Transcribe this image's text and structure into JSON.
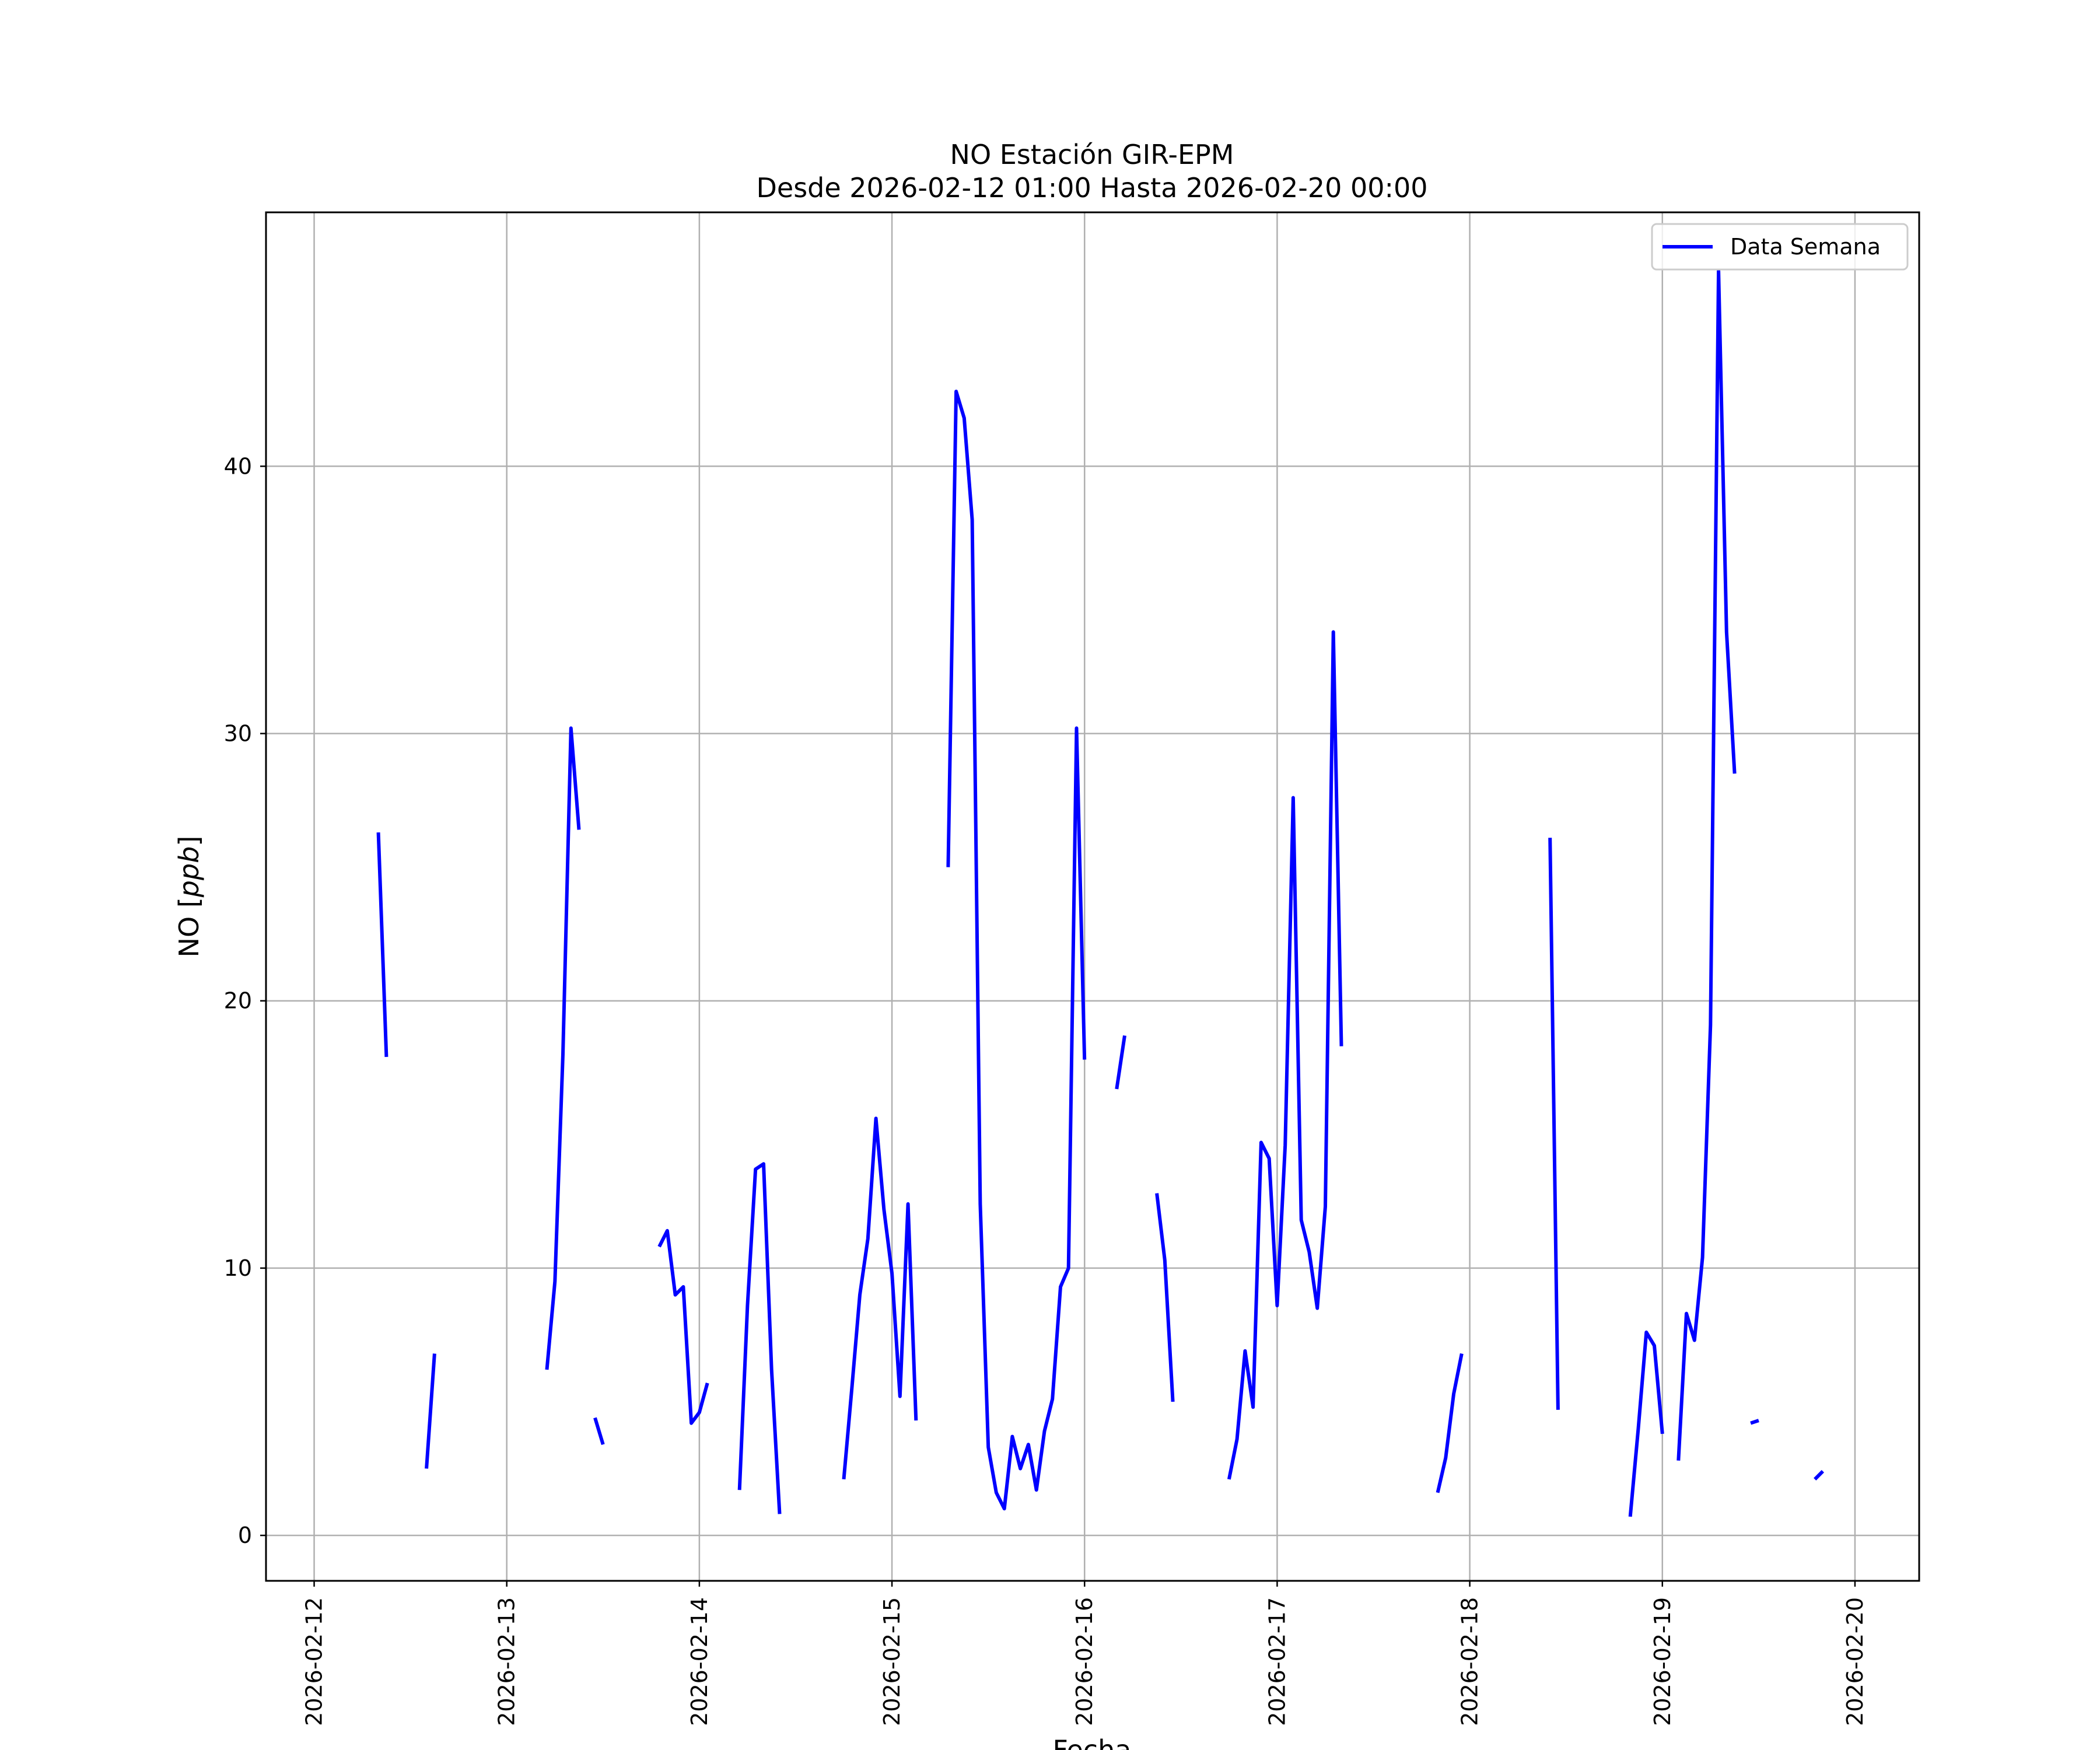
{
  "chart_data": {
    "type": "line",
    "title": "NO Estación GIR-EPM",
    "subtitle": "Desde 2026-02-12 01:00 Hasta 2026-02-20 00:00",
    "xlabel": "Fecha",
    "ylabel": "NO [ppb]",
    "ylim": [
      -1.7,
      49.5
    ],
    "xlim": [
      "2026-02-11 18:00",
      "2026-02-20 08:00"
    ],
    "yticks": [
      0,
      10,
      20,
      30,
      40
    ],
    "xticks": [
      "2026-02-12",
      "2026-02-13",
      "2026-02-14",
      "2026-02-15",
      "2026-02-16",
      "2026-02-17",
      "2026-02-18",
      "2026-02-19",
      "2026-02-20"
    ],
    "grid": true,
    "legend_position": "top-right",
    "series": [
      {
        "name": "Data Semana",
        "color": "#0000ff",
        "segments": [
          [
            [
              "2026-02-12 08:00",
              26.3
            ],
            [
              "2026-02-12 09:00",
              17.9
            ]
          ],
          [
            [
              "2026-02-12 14:00",
              2.5
            ],
            [
              "2026-02-12 15:00",
              6.8
            ]
          ],
          [
            [
              "2026-02-13 05:00",
              6.2
            ],
            [
              "2026-02-13 06:00",
              9.5
            ],
            [
              "2026-02-13 07:00",
              18.0
            ],
            [
              "2026-02-13 08:00",
              30.2
            ],
            [
              "2026-02-13 09:00",
              26.4
            ]
          ],
          [
            [
              "2026-02-13 11:00",
              4.4
            ],
            [
              "2026-02-13 12:00",
              3.4
            ]
          ],
          [
            [
              "2026-02-13 19:00",
              10.8
            ],
            [
              "2026-02-13 20:00",
              11.4
            ],
            [
              "2026-02-13 21:00",
              9.0
            ],
            [
              "2026-02-13 22:00",
              9.3
            ],
            [
              "2026-02-13 23:00",
              4.2
            ],
            [
              "2026-02-14 00:00",
              4.6
            ],
            [
              "2026-02-14 01:00",
              5.7
            ]
          ],
          [
            [
              "2026-02-14 05:00",
              1.7
            ],
            [
              "2026-02-14 06:00",
              8.6
            ],
            [
              "2026-02-14 07:00",
              13.7
            ],
            [
              "2026-02-14 08:00",
              13.9
            ],
            [
              "2026-02-14 09:00",
              6.2
            ],
            [
              "2026-02-14 10:00",
              0.8
            ]
          ],
          [
            [
              "2026-02-14 18:00",
              2.1
            ],
            [
              "2026-02-14 19:00",
              5.5
            ],
            [
              "2026-02-14 20:00",
              9.0
            ],
            [
              "2026-02-14 21:00",
              11.1
            ],
            [
              "2026-02-14 22:00",
              15.6
            ],
            [
              "2026-02-14 23:00",
              12.2
            ],
            [
              "2026-02-15 00:00",
              9.8
            ],
            [
              "2026-02-15 01:00",
              5.2
            ],
            [
              "2026-02-15 02:00",
              12.4
            ],
            [
              "2026-02-15 03:00",
              4.3
            ]
          ],
          [
            [
              "2026-02-15 07:00",
              25.0
            ],
            [
              "2026-02-15 08:00",
              42.8
            ],
            [
              "2026-02-15 09:00",
              41.8
            ],
            [
              "2026-02-15 10:00",
              38.0
            ],
            [
              "2026-02-15 11:00",
              12.4
            ],
            [
              "2026-02-15 12:00",
              3.3
            ],
            [
              "2026-02-15 13:00",
              1.6
            ],
            [
              "2026-02-15 14:00",
              1.0
            ],
            [
              "2026-02-15 15:00",
              3.7
            ],
            [
              "2026-02-15 16:00",
              2.5
            ],
            [
              "2026-02-15 17:00",
              3.4
            ],
            [
              "2026-02-15 18:00",
              1.7
            ],
            [
              "2026-02-15 19:00",
              3.9
            ],
            [
              "2026-02-15 20:00",
              5.1
            ],
            [
              "2026-02-15 21:00",
              9.3
            ],
            [
              "2026-02-15 22:00",
              10.0
            ],
            [
              "2026-02-15 23:00",
              30.2
            ],
            [
              "2026-02-16 00:00",
              17.8
            ]
          ],
          [
            [
              "2026-02-16 04:00",
              16.7
            ],
            [
              "2026-02-16 05:00",
              18.7
            ]
          ],
          [
            [
              "2026-02-16 09:00",
              12.8
            ],
            [
              "2026-02-16 10:00",
              10.3
            ],
            [
              "2026-02-16 11:00",
              5.0
            ]
          ],
          [
            [
              "2026-02-16 18:00",
              2.1
            ],
            [
              "2026-02-16 19:00",
              3.6
            ],
            [
              "2026-02-16 20:00",
              6.9
            ],
            [
              "2026-02-16 21:00",
              4.8
            ],
            [
              "2026-02-16 22:00",
              14.7
            ],
            [
              "2026-02-16 23:00",
              14.1
            ],
            [
              "2026-02-17 00:00",
              8.6
            ],
            [
              "2026-02-17 01:00",
              14.6
            ],
            [
              "2026-02-17 02:00",
              27.6
            ],
            [
              "2026-02-17 03:00",
              11.8
            ],
            [
              "2026-02-17 04:00",
              10.6
            ],
            [
              "2026-02-17 05:00",
              8.5
            ],
            [
              "2026-02-17 06:00",
              12.3
            ],
            [
              "2026-02-17 07:00",
              33.8
            ],
            [
              "2026-02-17 08:00",
              18.3
            ]
          ],
          [
            [
              "2026-02-17 20:00",
              1.6
            ],
            [
              "2026-02-17 21:00",
              2.9
            ],
            [
              "2026-02-17 22:00",
              5.3
            ],
            [
              "2026-02-17 23:00",
              6.8
            ]
          ],
          [
            [
              "2026-02-18 10:00",
              26.1
            ],
            [
              "2026-02-18 11:00",
              4.7
            ]
          ],
          [
            [
              "2026-02-18 20:00",
              0.7
            ],
            [
              "2026-02-18 21:00",
              4.0
            ],
            [
              "2026-02-18 22:00",
              7.6
            ],
            [
              "2026-02-18 23:00",
              7.1
            ],
            [
              "2026-02-19 00:00",
              3.8
            ]
          ],
          [
            [
              "2026-02-19 02:00",
              2.8
            ],
            [
              "2026-02-19 03:00",
              8.3
            ],
            [
              "2026-02-19 04:00",
              7.3
            ],
            [
              "2026-02-19 05:00",
              10.4
            ],
            [
              "2026-02-19 06:00",
              19.1
            ],
            [
              "2026-02-19 07:00",
              47.3
            ],
            [
              "2026-02-19 08:00",
              33.8
            ],
            [
              "2026-02-19 09:00",
              28.5
            ]
          ],
          [
            [
              "2026-02-19 11:00",
              4.2
            ],
            [
              "2026-02-19 12:00",
              4.3
            ]
          ],
          [
            [
              "2026-02-19 19:00",
              2.1
            ],
            [
              "2026-02-19 20:00",
              2.4
            ]
          ]
        ]
      }
    ]
  }
}
